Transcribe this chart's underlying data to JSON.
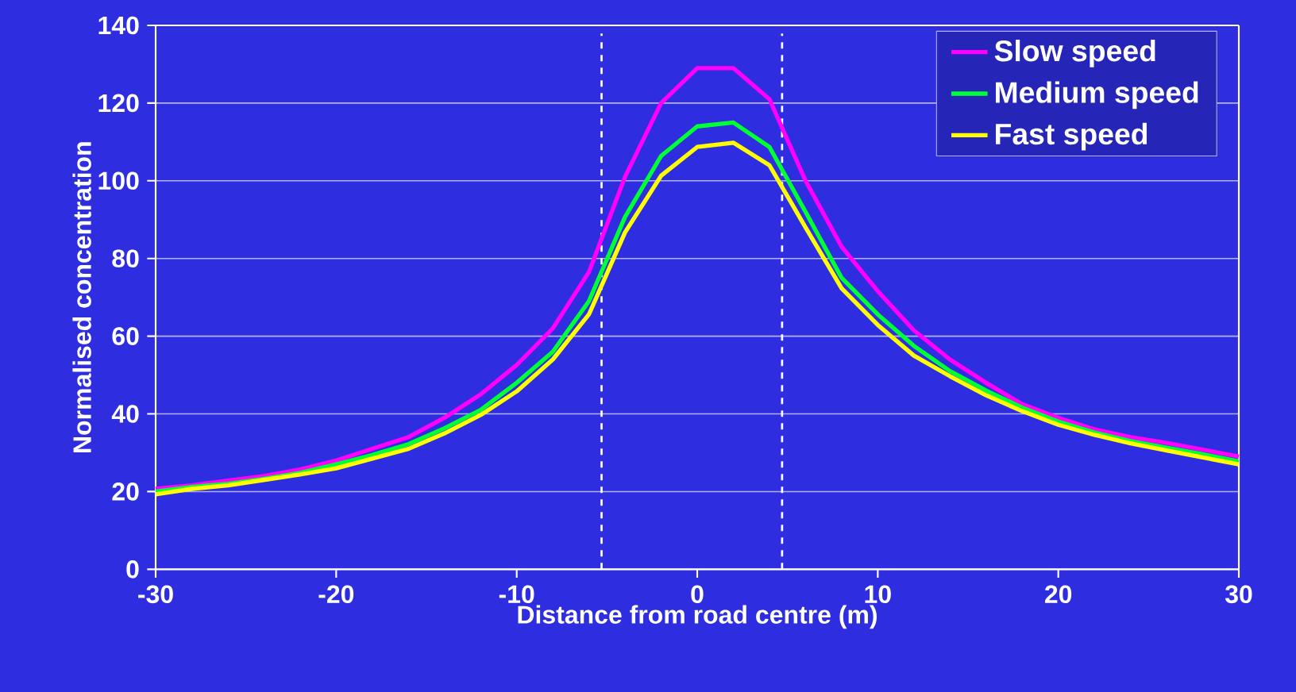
{
  "chart_data": {
    "type": "line",
    "xlabel": "Distance from road centre (m)",
    "ylabel": "Normalised concentration",
    "x": [
      -30,
      -28,
      -26,
      -24,
      -22,
      -20,
      -18,
      -16,
      -14,
      -12,
      -10,
      -8,
      -6,
      -4,
      -2,
      0,
      2,
      4,
      6,
      8,
      10,
      12,
      14,
      16,
      18,
      20,
      22,
      24,
      26,
      28,
      30
    ],
    "series": [
      {
        "name": "Slow speed",
        "color": "#ff00ff",
        "values": [
          20.7,
          21.6,
          22.8,
          24,
          25.7,
          28,
          31,
          34,
          39,
          45,
          52.6,
          62,
          76.5,
          101,
          120,
          129,
          129,
          121,
          100,
          83,
          71.6,
          61.5,
          54,
          48,
          42.5,
          39,
          36,
          34,
          32.5,
          30.8,
          29
        ]
      },
      {
        "name": "Medium speed",
        "color": "#00ff33",
        "values": [
          20,
          21.2,
          22,
          23.3,
          24.8,
          27,
          29.4,
          32.2,
          36.3,
          41,
          48,
          56,
          69,
          90.7,
          106.4,
          114,
          115,
          108.7,
          92,
          75,
          65.6,
          57.5,
          51,
          46,
          41.6,
          38,
          35.2,
          33,
          31.3,
          29.6,
          27.8
        ]
      },
      {
        "name": "Fast speed",
        "color": "#ffff00",
        "values": [
          19.3,
          20.7,
          21.6,
          23,
          24.4,
          26,
          28.5,
          31,
          35,
          39.7,
          45.8,
          54,
          65.6,
          86.7,
          101.3,
          108.7,
          109.8,
          104,
          88,
          72.3,
          62.9,
          55,
          49.7,
          44.8,
          40.7,
          37.2,
          34.6,
          32.4,
          30.6,
          28.8,
          27
        ]
      }
    ],
    "xlim": [
      -30,
      30
    ],
    "xticks": [
      -30,
      -20,
      -10,
      0,
      10,
      20,
      30
    ],
    "ylim": [
      0,
      140
    ],
    "yticks": [
      0,
      20,
      40,
      60,
      80,
      100,
      120,
      140
    ],
    "grid": "y",
    "legend": "top right",
    "marker": "none",
    "line_style": "solid",
    "ref_lines": [
      {
        "axis": "x",
        "value": -5.3,
        "color": "#ffffff",
        "line_style": "dashed"
      },
      {
        "axis": "x",
        "value": 4.7,
        "color": "#ffffff",
        "line_style": "dashed"
      }
    ]
  }
}
